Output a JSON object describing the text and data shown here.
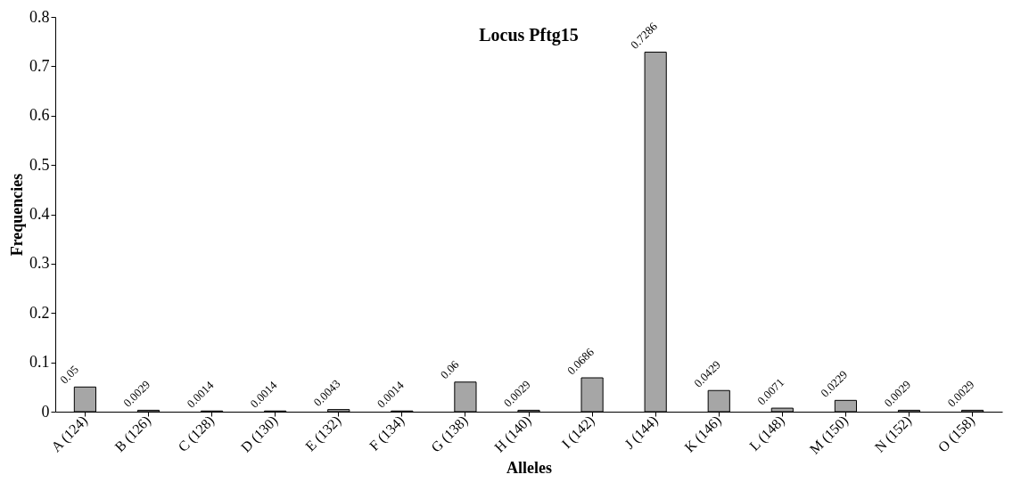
{
  "chart_data": {
    "type": "bar",
    "title": "Locus Pftg15",
    "xlabel": "Alleles",
    "ylabel": "Frequencies",
    "categories": [
      "A (124)",
      "B (126)",
      "C (128)",
      "D (130)",
      "E (132)",
      "F (134)",
      "G (138)",
      "H (140)",
      "I (142)",
      "J (144)",
      "K (146)",
      "L (148)",
      "M (150)",
      "N (152)",
      "O (158)"
    ],
    "values": [
      0.05,
      0.0029,
      0.0014,
      0.0014,
      0.0043,
      0.0014,
      0.06,
      0.0029,
      0.0686,
      0.7286,
      0.0429,
      0.0071,
      0.0229,
      0.0029,
      0.0029
    ],
    "color": "#a6a6a6",
    "ylim": [
      0,
      0.8
    ],
    "yticks": [
      0,
      0.1,
      0.2,
      0.3,
      0.4,
      0.5,
      0.6,
      0.7,
      0.8
    ],
    "data_labels": true,
    "grid": false
  }
}
